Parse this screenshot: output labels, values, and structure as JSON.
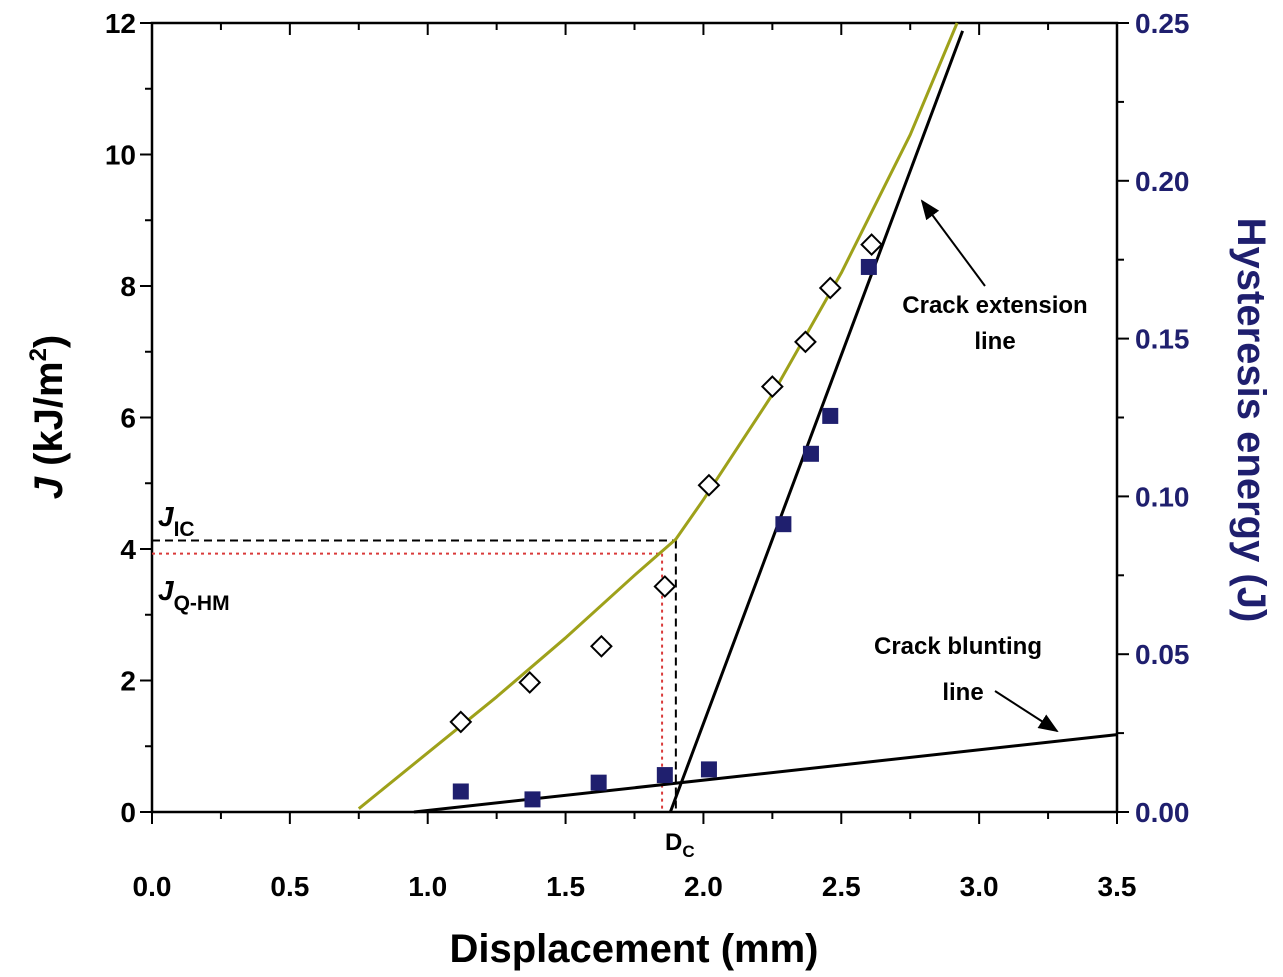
{
  "chart_data": {
    "type": "scatter",
    "x_axis": {
      "label": "Displacement (mm)",
      "range": [
        0.0,
        3.5
      ],
      "ticks": [
        "0.0",
        "0.5",
        "1.0",
        "1.5",
        "2.0",
        "2.5",
        "3.0",
        "3.5"
      ],
      "tick_values": [
        0.0,
        0.5,
        1.0,
        1.5,
        2.0,
        2.5,
        3.0,
        3.5
      ]
    },
    "y_left": {
      "label_italic": "J",
      "label_rest": " (kJ/m",
      "label_sup": "2",
      "label_close": ")",
      "range": [
        0,
        12
      ],
      "ticks": [
        "0",
        "2",
        "4",
        "6",
        "8",
        "10",
        "12"
      ],
      "tick_values": [
        0,
        2,
        4,
        6,
        8,
        10,
        12
      ]
    },
    "y_right": {
      "label": "Hysteresis energy (J)",
      "color": "#1f1f6e",
      "range": [
        0.0,
        0.25
      ],
      "ticks": [
        "0.00",
        "0.05",
        "0.10",
        "0.15",
        "0.20",
        "0.25"
      ],
      "tick_values": [
        0.0,
        0.05,
        0.1,
        0.15,
        0.2,
        0.25
      ]
    },
    "series": [
      {
        "name": "J",
        "axis": "left",
        "marker": "open-diamond",
        "color": "#000000",
        "x": [
          1.12,
          1.37,
          1.63,
          1.86,
          2.02,
          2.25,
          2.37,
          2.46,
          2.61
        ],
        "y": [
          1.37,
          1.97,
          2.52,
          3.43,
          4.97,
          6.47,
          7.15,
          7.97,
          8.63
        ]
      },
      {
        "name": "Hysteresis energy",
        "axis": "right",
        "marker": "filled-square",
        "color": "#1f1f6e",
        "x": [
          1.12,
          1.38,
          1.62,
          1.86,
          2.02,
          2.29,
          2.39,
          2.46,
          2.6
        ],
        "y": [
          0.0065,
          0.004,
          0.0093,
          0.0117,
          0.0135,
          0.0912,
          0.1135,
          0.1255,
          0.1727
        ]
      },
      {
        "name": "J fit curve",
        "axis": "left",
        "type": "line",
        "color": "#9ea11a",
        "x": [
          0.75,
          1.0,
          1.25,
          1.5,
          1.75,
          1.9,
          2.0,
          2.25,
          2.5,
          2.75,
          2.92
        ],
        "y": [
          0.05,
          0.9,
          1.75,
          2.65,
          3.6,
          4.15,
          4.75,
          6.35,
          8.2,
          10.3,
          12.0
        ]
      },
      {
        "name": "Crack extension line",
        "axis": "right",
        "type": "line",
        "color": "#000000",
        "x": [
          1.88,
          2.94
        ],
        "y": [
          0.0,
          0.2475
        ]
      },
      {
        "name": "Crack blunting line",
        "axis": "right",
        "type": "line",
        "color": "#000000",
        "x": [
          0.95,
          3.5
        ],
        "y": [
          0.0,
          0.0245
        ]
      }
    ],
    "reference_lines": [
      {
        "name": "J_IC",
        "axis": "left",
        "y": 4.13,
        "x_end": 1.9,
        "color": "#000000",
        "style": "dashed"
      },
      {
        "name": "J_Q-HM",
        "axis": "left",
        "y": 3.93,
        "x_end": 1.85,
        "color": "#d93a3a",
        "style": "dotted"
      }
    ],
    "annotations": {
      "jic_main": "J",
      "jic_sub": "IC",
      "jq_main": "J",
      "jq_sub": "Q-HM",
      "dc_main": "D",
      "dc_sub": "C",
      "dc_value": 1.88,
      "crack_extension_line1": "Crack extension",
      "crack_extension_line2": "line",
      "crack_blunting_line1": "Crack blunting",
      "crack_blunting_line2": "line"
    }
  }
}
